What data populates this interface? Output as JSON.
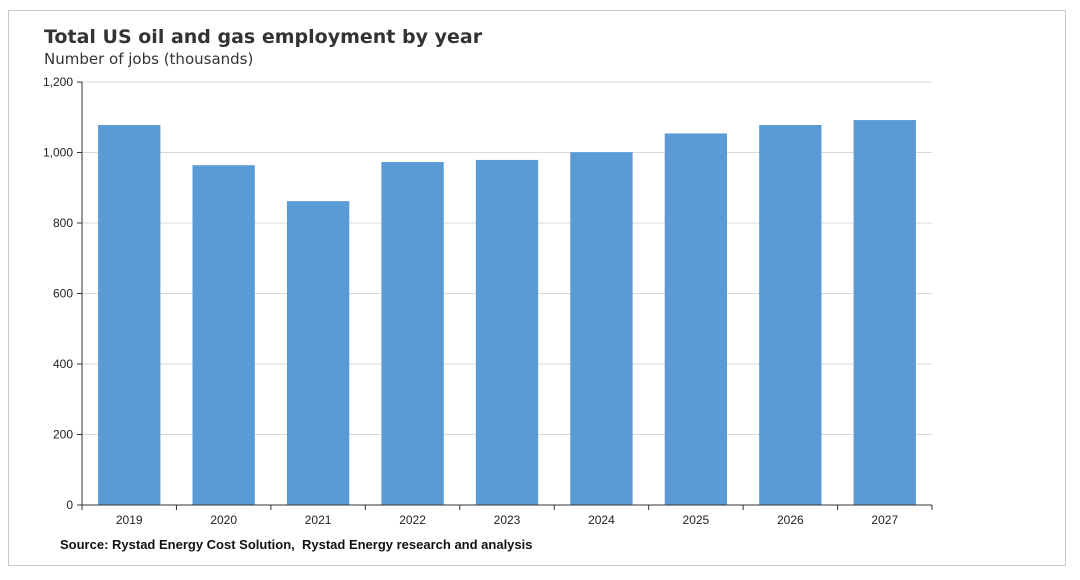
{
  "chart_data": {
    "type": "bar",
    "title": "Total US oil and gas employment by year",
    "subtitle": "Number of jobs (thousands)",
    "categories": [
      "2019",
      "2020",
      "2021",
      "2022",
      "2023",
      "2024",
      "2025",
      "2026",
      "2027"
    ],
    "values": [
      1078,
      964,
      862,
      973,
      979,
      1001,
      1054,
      1078,
      1092
    ],
    "ylim": [
      0,
      1200
    ],
    "yticks": [
      0,
      200,
      400,
      600,
      800,
      1000,
      1200
    ],
    "ytick_labels": [
      "0",
      "200",
      "400",
      "600",
      "800",
      "1,000",
      "1,200"
    ],
    "grid": true,
    "legend": "none",
    "bar_color": "#5b9bd5",
    "source": "Source: Rystad Energy Cost Solution,  Rystad Energy research and analysis"
  }
}
